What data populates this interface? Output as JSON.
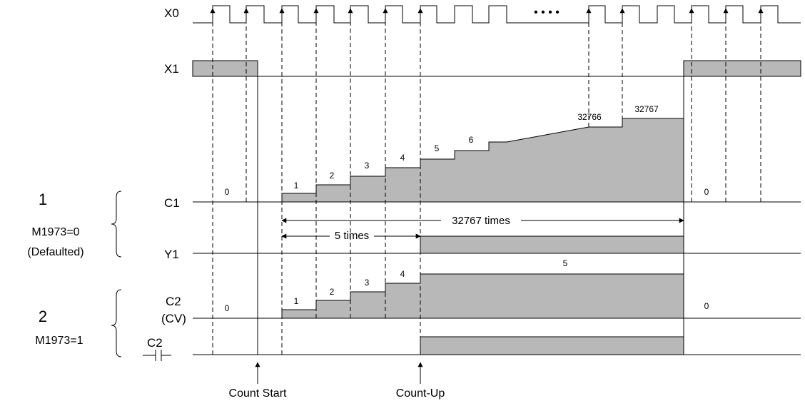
{
  "signals": {
    "x0": "X0",
    "x1": "X1",
    "c1": "C1",
    "y1": "Y1",
    "c2cv_line1": "C2",
    "c2cv_line2": "(CV)",
    "c2_contact": "C2"
  },
  "cases": {
    "case1": {
      "number": "1",
      "condition": "M1973=0",
      "note": "(Defaulted)"
    },
    "case2": {
      "number": "2",
      "condition": "M1973=1"
    }
  },
  "ellipsis": "• • • •",
  "c1_values": [
    "0",
    "1",
    "2",
    "3",
    "4",
    "5",
    "6",
    "32766",
    "32767",
    "0"
  ],
  "c2_values": [
    "0",
    "1",
    "2",
    "3",
    "4",
    "5",
    "0"
  ],
  "annotations": {
    "times_32767": "32767 times",
    "times_5": "5 times"
  },
  "markers": {
    "count_start": "Count Start",
    "count_up": "Count-Up"
  },
  "colors": {
    "fill": "#b8b8b8",
    "line": "#000000"
  }
}
